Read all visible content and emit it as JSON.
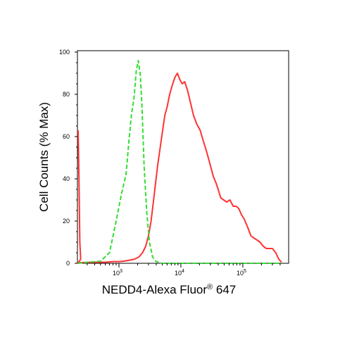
{
  "chart_data": {
    "type": "area",
    "xlabel": "NEDD4-Alexa Fluor",
    "xlabel_sup": "®",
    "xlabel_suffix": " 647",
    "ylabel": "Cell Counts (% Max)",
    "x_scale": "biexponential",
    "xlim": [
      -300,
      420000
    ],
    "ylim": [
      0,
      100
    ],
    "y_ticks": [
      0,
      20,
      40,
      60,
      80,
      100
    ],
    "x_major_ticks": [
      1000,
      10000,
      100000
    ],
    "x_tick_labels": [
      {
        "base": "10",
        "exp": "3"
      },
      {
        "base": "10",
        "exp": "4"
      },
      {
        "base": "10",
        "exp": "5"
      }
    ],
    "series": [
      {
        "color": "#ff3333",
        "line_style": "solid",
        "x": [
          -300,
          -295,
          -285,
          -270,
          -200,
          0,
          150,
          400,
          600,
          800,
          1000,
          1200,
          1500,
          1800,
          2100,
          2400,
          2700,
          3000,
          3300,
          3700,
          4200,
          4800,
          5500,
          6000,
          6600,
          7200,
          8000,
          8800,
          9600,
          10500,
          11500,
          12800,
          14300,
          16000,
          18000,
          20500,
          23000,
          26000,
          29500,
          33500,
          37000,
          40000,
          44000,
          49000,
          55000,
          62000,
          70000,
          78000,
          86000,
          95000,
          105000,
          120000,
          135000,
          150000,
          170000,
          190000,
          215000,
          240000,
          270000,
          300000,
          340000,
          380000,
          420000
        ],
        "y": [
          63,
          40,
          10,
          2,
          0,
          0,
          0.3,
          0.5,
          0.5,
          0.8,
          0.8,
          1,
          1.5,
          2,
          3,
          5,
          8,
          13,
          20,
          32,
          46,
          58,
          70,
          74,
          80,
          84,
          88,
          90,
          87,
          85,
          86,
          82,
          76,
          70,
          66,
          63,
          58,
          53,
          47,
          41,
          38,
          35,
          31,
          30,
          29,
          30,
          27,
          27,
          26,
          23,
          21,
          17,
          13,
          12,
          11,
          10,
          8,
          7,
          7,
          7,
          5,
          2,
          0.5
        ]
      },
      {
        "color": "#33dd33",
        "line_style": "dashed",
        "x": [
          -300,
          0,
          300,
          500,
          700,
          900,
          1100,
          1300,
          1450,
          1600,
          1750,
          1900,
          2050,
          2200,
          2350,
          2550,
          2800,
          3100,
          3500,
          4000,
          5000,
          10000,
          100000,
          420000
        ],
        "y": [
          0,
          0,
          0.5,
          1,
          5,
          20,
          33,
          42,
          58,
          71,
          78,
          91,
          96,
          90,
          75,
          46,
          25,
          10,
          3,
          0.8,
          0,
          0,
          0,
          0
        ]
      }
    ]
  }
}
